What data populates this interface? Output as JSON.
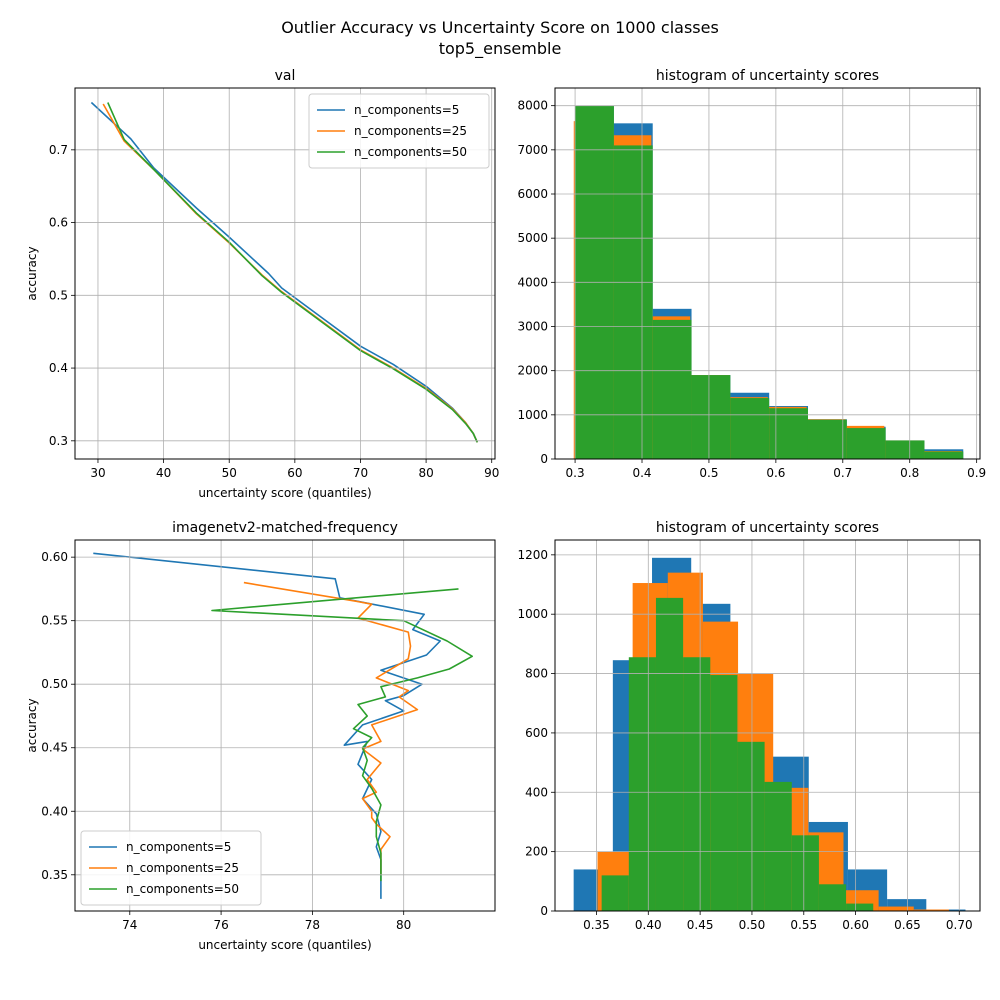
{
  "figure": {
    "suptitle_line1": "Outlier Accuracy vs Uncertainty Score on 1000 classes",
    "suptitle_line2": "top5_ensemble"
  },
  "colors": {
    "c5": "#1f77b4",
    "c25": "#ff7f0e",
    "c50": "#2ca02c"
  },
  "chart_data": [
    {
      "type": "line",
      "title": "val",
      "xlabel": "uncertainty score (quantiles)",
      "ylabel": "accuracy",
      "xlim": [
        26.5,
        90.5
      ],
      "ylim": [
        0.275,
        0.785
      ],
      "xticks": [
        30,
        40,
        50,
        60,
        70,
        80,
        90
      ],
      "yticks": [
        0.3,
        0.4,
        0.5,
        0.6,
        0.7
      ],
      "grid": true,
      "legend": "upper right",
      "series": [
        {
          "name": "n_components=5",
          "color": "#1f77b4",
          "x": [
            29.0,
            35.0,
            38.5,
            45,
            50,
            56,
            58,
            64,
            70,
            75,
            80,
            84,
            86,
            87.2,
            87.8
          ],
          "y": [
            0.765,
            0.715,
            0.675,
            0.62,
            0.58,
            0.53,
            0.51,
            0.47,
            0.43,
            0.405,
            0.375,
            0.345,
            0.325,
            0.31,
            0.298
          ]
        },
        {
          "name": "n_components=25",
          "color": "#ff7f0e",
          "x": [
            30.8,
            34.0,
            38.5,
            45,
            50,
            55,
            58,
            64,
            70,
            75,
            80,
            84,
            86,
            87.2,
            87.8
          ],
          "y": [
            0.763,
            0.712,
            0.673,
            0.612,
            0.572,
            0.528,
            0.505,
            0.465,
            0.425,
            0.4,
            0.372,
            0.344,
            0.325,
            0.31,
            0.298
          ]
        },
        {
          "name": "n_components=50",
          "color": "#2ca02c",
          "x": [
            31.5,
            34.0,
            38.5,
            45,
            50,
            55,
            58,
            64,
            70,
            75,
            80,
            84,
            86,
            87.2,
            87.8
          ],
          "y": [
            0.765,
            0.714,
            0.673,
            0.613,
            0.573,
            0.527,
            0.504,
            0.464,
            0.424,
            0.399,
            0.371,
            0.343,
            0.324,
            0.31,
            0.298
          ]
        }
      ]
    },
    {
      "type": "bar",
      "title": "histogram of uncertainty scores",
      "xlim": [
        0.27,
        0.905
      ],
      "ylim": [
        0,
        8400
      ],
      "xticks": [
        0.3,
        0.4,
        0.5,
        0.6,
        0.7,
        0.8,
        0.9
      ],
      "yticks": [
        0,
        1000,
        2000,
        3000,
        4000,
        5000,
        6000,
        7000,
        8000
      ],
      "grid": true,
      "series": [
        {
          "color": "#1f77b4",
          "edges": [
            0.3,
            0.358,
            0.416,
            0.474,
            0.532,
            0.59,
            0.648,
            0.706,
            0.764,
            0.822,
            0.88
          ],
          "values": [
            8000,
            7600,
            3400,
            1900,
            1500,
            1200,
            900,
            730,
            420,
            220
          ]
        },
        {
          "color": "#ff7f0e",
          "edges": [
            0.298,
            0.356,
            0.414,
            0.472,
            0.53,
            0.588,
            0.646,
            0.704,
            0.762,
            0.82,
            0.878
          ],
          "values": [
            7650,
            7330,
            3230,
            1900,
            1400,
            1180,
            900,
            750,
            420,
            180
          ]
        },
        {
          "color": "#2ca02c",
          "edges": [
            0.3,
            0.358,
            0.416,
            0.474,
            0.532,
            0.59,
            0.648,
            0.706,
            0.764,
            0.822,
            0.88
          ],
          "values": [
            8000,
            7100,
            3150,
            1900,
            1380,
            1150,
            890,
            700,
            420,
            170
          ]
        }
      ]
    },
    {
      "type": "line",
      "title": "imagenetv2-matched-frequency",
      "xlabel": "uncertainty score (quantiles)",
      "ylabel": "accuracy",
      "xlim": [
        72.8,
        82.0
      ],
      "ylim": [
        0.3215,
        0.6135
      ],
      "xticks": [
        74,
        76,
        78,
        80
      ],
      "yticks": [
        0.35,
        0.4,
        0.45,
        0.5,
        0.55,
        0.6
      ],
      "grid": true,
      "legend": "lower left",
      "series": [
        {
          "name": "n_components=5",
          "color": "#1f77b4",
          "x": [
            73.2,
            78.5,
            78.6,
            80.45,
            80.2,
            80.8,
            80.5,
            79.5,
            80.4,
            80.0,
            79.6,
            80.0,
            79.1,
            78.7,
            79.2,
            79.0,
            79.3,
            79.1,
            79.4,
            79.5,
            79.4,
            79.5,
            79.5,
            79.5,
            79.5
          ],
          "y": [
            0.603,
            0.583,
            0.568,
            0.555,
            0.543,
            0.534,
            0.523,
            0.511,
            0.5,
            0.491,
            0.487,
            0.479,
            0.468,
            0.452,
            0.455,
            0.437,
            0.425,
            0.41,
            0.398,
            0.384,
            0.372,
            0.362,
            0.352,
            0.345,
            0.331
          ]
        },
        {
          "name": "n_components=25",
          "color": "#ff7f0e",
          "x": [
            76.5,
            79.0,
            79.3,
            79.0,
            80.1,
            80.15,
            80.1,
            79.4,
            80.1,
            79.9,
            80.3,
            79.3,
            79.5,
            79.1,
            79.5,
            79.2,
            79.4,
            79.1,
            79.3,
            79.3,
            79.4,
            79.7,
            79.5,
            79.5,
            79.5
          ],
          "y": [
            0.58,
            0.565,
            0.563,
            0.552,
            0.541,
            0.53,
            0.52,
            0.505,
            0.495,
            0.49,
            0.48,
            0.468,
            0.455,
            0.449,
            0.438,
            0.425,
            0.415,
            0.41,
            0.4,
            0.395,
            0.39,
            0.38,
            0.37,
            0.36,
            0.35
          ]
        },
        {
          "name": "n_components=50",
          "color": "#2ca02c",
          "x": [
            81.2,
            75.8,
            80.0,
            80.95,
            81.5,
            81.0,
            80.3,
            79.5,
            79.6,
            79.0,
            79.2,
            78.9,
            79.3,
            79.1,
            79.2,
            79.1,
            79.3,
            79.5,
            79.4,
            79.4,
            79.5,
            79.5,
            79.5
          ],
          "y": [
            0.575,
            0.558,
            0.55,
            0.534,
            0.522,
            0.512,
            0.505,
            0.498,
            0.49,
            0.484,
            0.475,
            0.465,
            0.458,
            0.45,
            0.44,
            0.428,
            0.418,
            0.405,
            0.392,
            0.38,
            0.367,
            0.355,
            0.345
          ]
        }
      ]
    },
    {
      "type": "bar",
      "title": "histogram of uncertainty scores",
      "xlim": [
        0.31,
        0.72
      ],
      "ylim": [
        0,
        1250
      ],
      "xticks": [
        0.35,
        0.4,
        0.45,
        0.5,
        0.55,
        0.6,
        0.65,
        0.7
      ],
      "yticks": [
        0,
        200,
        400,
        600,
        800,
        1000,
        1200
      ],
      "grid": true,
      "series": [
        {
          "color": "#1f77b4",
          "edges": [
            0.328,
            0.3658,
            0.4036,
            0.4414,
            0.4792,
            0.517,
            0.5548,
            0.5926,
            0.6304,
            0.6682,
            0.706
          ],
          "values": [
            140,
            845,
            1190,
            1035,
            790,
            520,
            300,
            140,
            40,
            5
          ]
        },
        {
          "color": "#ff7f0e",
          "edges": [
            0.351,
            0.3849,
            0.4188,
            0.4527,
            0.4866,
            0.5205,
            0.5544,
            0.5883,
            0.6222,
            0.6561,
            0.69
          ],
          "values": [
            200,
            1105,
            1140,
            975,
            800,
            415,
            265,
            70,
            15,
            5
          ]
        },
        {
          "color": "#2ca02c",
          "edges": [
            0.355,
            0.3812,
            0.4074,
            0.4336,
            0.4598,
            0.486,
            0.5122,
            0.5384,
            0.5646,
            0.5908,
            0.617
          ],
          "values": [
            120,
            855,
            1055,
            855,
            795,
            570,
            435,
            255,
            90,
            25
          ]
        }
      ]
    }
  ]
}
